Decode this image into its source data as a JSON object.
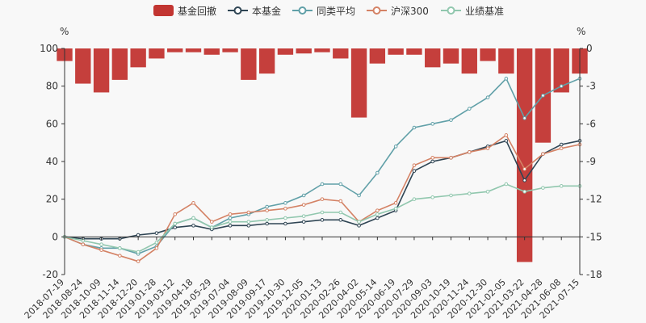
{
  "chart_data": {
    "type": "line",
    "legend_position": "top-center",
    "series": [
      {
        "name": "基金回撤",
        "kind": "bar",
        "axis": "right",
        "color": "#c23531"
      },
      {
        "name": "本基金",
        "kind": "line",
        "axis": "left",
        "color": "#2f4554"
      },
      {
        "name": "同类平均",
        "kind": "line",
        "axis": "left",
        "color": "#61a0a8"
      },
      {
        "name": "沪深300",
        "kind": "line",
        "axis": "left",
        "color": "#d48265"
      },
      {
        "name": "业绩基准",
        "kind": "line",
        "axis": "left",
        "color": "#91c7ae"
      }
    ],
    "left_axis": {
      "unit": "%",
      "ylim": [
        -20,
        100
      ],
      "ticks": [
        -20,
        0,
        20,
        40,
        60,
        80,
        100
      ]
    },
    "right_axis": {
      "unit": "%",
      "ylim": [
        -18,
        0
      ],
      "ticks": [
        -18,
        -15,
        -12,
        -9,
        -6,
        -3,
        0
      ]
    },
    "x_labels": [
      "2018-07-19",
      "2018-08-24",
      "2018-10-09",
      "2018-11-14",
      "2018-12-20",
      "2019-01-28",
      "2019-03-12",
      "2019-04-18",
      "2019-05-29",
      "2019-07-04",
      "2019-08-09",
      "2019-09-17",
      "2019-10-30",
      "2019-12-05",
      "2020-01-13",
      "2020-02-26",
      "2020-04-02",
      "2020-05-14",
      "2020-06-19",
      "2020-07-29",
      "2020-09-03",
      "2020-10-19",
      "2020-11-24",
      "2020-12-30",
      "2021-02-05",
      "2021-03-22",
      "2021-04-28",
      "2021-06-08",
      "2021-07-15"
    ],
    "line_values": {
      "本基金": [
        0,
        -1,
        -1,
        -1,
        1,
        2,
        5,
        6,
        4,
        6,
        6,
        7,
        7,
        8,
        9,
        9,
        6,
        10,
        14,
        35,
        40,
        42,
        45,
        48,
        51,
        30,
        44,
        49,
        51
      ],
      "同类平均": [
        0,
        -4,
        -6,
        -6,
        -9,
        -5,
        7,
        10,
        5,
        10,
        12,
        16,
        18,
        22,
        28,
        28,
        22,
        34,
        48,
        58,
        60,
        62,
        68,
        74,
        84,
        63,
        75,
        80,
        84
      ],
      "沪深300": [
        0,
        -4,
        -7,
        -10,
        -13,
        -6,
        12,
        18,
        8,
        12,
        13,
        14,
        15,
        17,
        20,
        19,
        8,
        14,
        18,
        38,
        42,
        42,
        45,
        47,
        54,
        36,
        44,
        47,
        49
      ],
      "业绩基准": [
        0,
        -2,
        -4,
        -6,
        -8,
        -3,
        7,
        10,
        5,
        8,
        8,
        9,
        10,
        11,
        13,
        13,
        8,
        12,
        15,
        20,
        21,
        22,
        23,
        24,
        28,
        24,
        26,
        27,
        27
      ]
    },
    "drawdown_values": [
      -1,
      -2.8,
      -3.5,
      -2.5,
      -1.5,
      -0.8,
      -0.3,
      -0.3,
      -0.5,
      -0.3,
      -2.5,
      -2,
      -0.5,
      -0.4,
      -0.3,
      -0.8,
      -5.5,
      -1.2,
      -0.5,
      -0.5,
      -1.5,
      -1.2,
      -2,
      -1,
      -2,
      -17,
      -7.5,
      -3.5,
      -2
    ]
  }
}
